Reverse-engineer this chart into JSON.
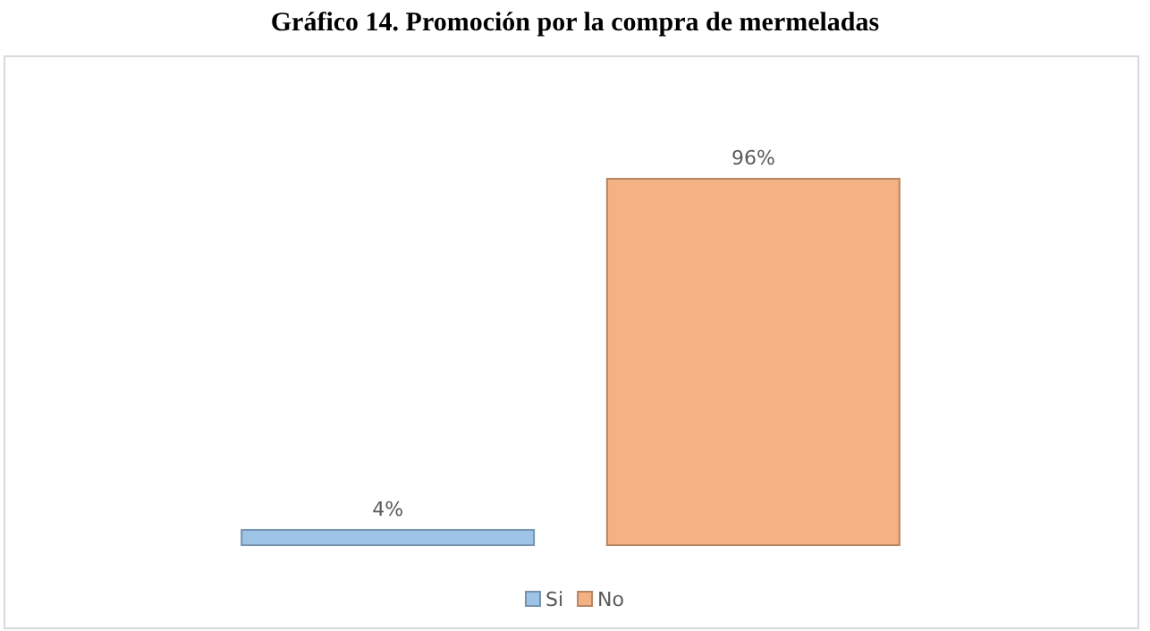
{
  "chart_data": {
    "type": "bar",
    "title": "Gráfico 14. Promoción por la compra de mermeladas",
    "categories": [
      null
    ],
    "series": [
      {
        "name": "Si",
        "color": "#9dc3e6",
        "values": [
          4
        ],
        "value_labels": [
          "4%"
        ]
      },
      {
        "name": "No",
        "color": "#f4b183",
        "values": [
          96
        ],
        "value_labels": [
          "96%"
        ]
      }
    ],
    "legend": "bottom"
  }
}
